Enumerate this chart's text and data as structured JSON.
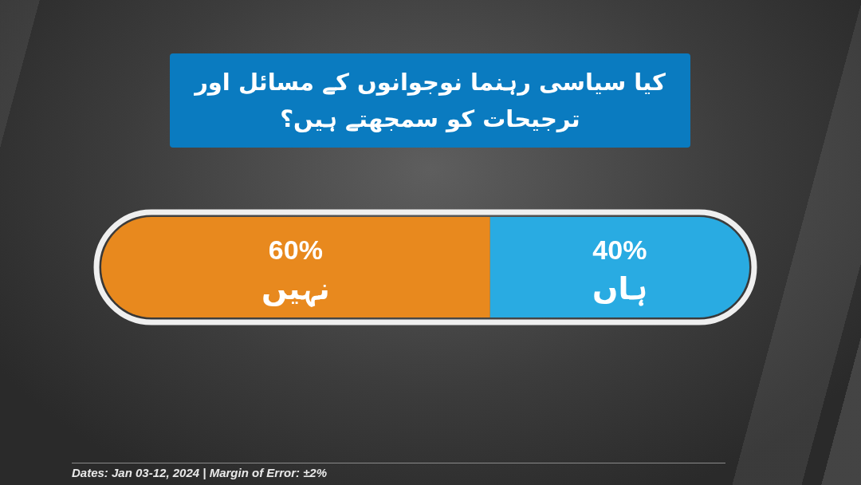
{
  "chart_data": {
    "type": "bar",
    "orientation": "horizontal",
    "stacked": true,
    "title": "کیا سیاسی رہنما نوجوانوں کے مسائل اور ترجیحات کو سمجھتے ہیں؟",
    "categories": [
      null
    ],
    "series": [
      {
        "name": "نہیں",
        "color": "#e8891e",
        "values": [
          60
        ],
        "value_labels": [
          "60%"
        ]
      },
      {
        "name": "ہاں",
        "color": "#29abe2",
        "values": [
          40
        ],
        "value_labels": [
          "40%"
        ]
      }
    ],
    "tick_labels": false,
    "annotations": [
      "Dates: Jan 03-12, 2024 | Margin of Error: ±2%"
    ]
  }
}
